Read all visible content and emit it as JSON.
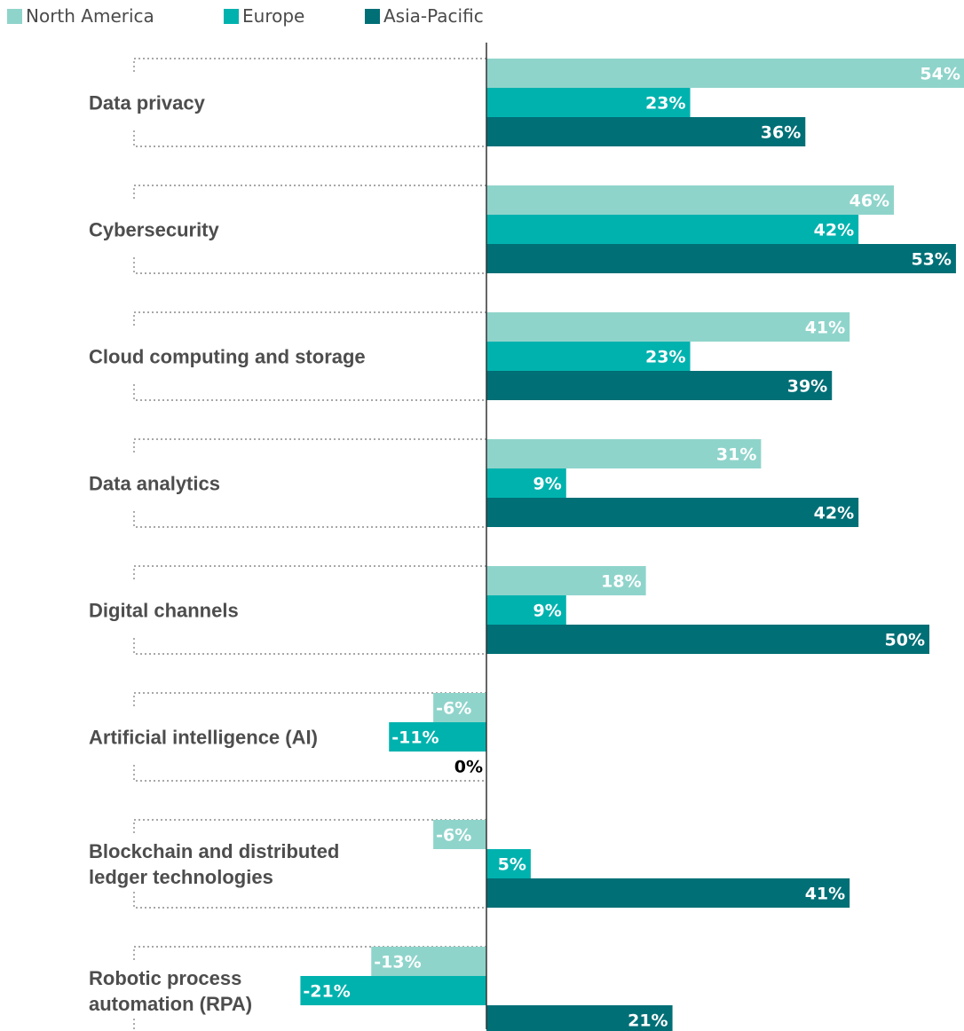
{
  "colors": {
    "north_america": "#8fd4cb",
    "europe": "#00b2ae",
    "asia_pacific": "#006f76",
    "axis": "#333333",
    "bracket": "#8a8a8a",
    "label_inside": "#ffffff",
    "label_zero": "#000000"
  },
  "chart_data": {
    "type": "bar",
    "orientation": "horizontal",
    "legend_position": "top-left",
    "grid": false,
    "xlim": [
      -38,
      54
    ],
    "categories": [
      "Data privacy",
      "Cybersecurity",
      "Cloud computing and storage",
      "Data analytics",
      "Digital channels",
      "Artificial intelligence (AI)",
      "Blockchain and distributed ledger technologies",
      "Robotic process automation (RPA)"
    ],
    "category_lines": [
      [
        "Data privacy"
      ],
      [
        "Cybersecurity"
      ],
      [
        "Cloud computing and storage"
      ],
      [
        "Data analytics"
      ],
      [
        "Digital channels"
      ],
      [
        "Artificial intelligence (AI)"
      ],
      [
        "Blockchain and distributed",
        "ledger technologies"
      ],
      [
        "Robotic process",
        "automation (RPA)"
      ]
    ],
    "series": [
      {
        "name": "North America",
        "values": [
          54,
          46,
          41,
          31,
          18,
          -6,
          -6,
          -13
        ],
        "labels": [
          "54%",
          "46%",
          "41%",
          "31%",
          "18%",
          "-6%",
          "-6%",
          "-13%"
        ]
      },
      {
        "name": "Europe",
        "values": [
          23,
          42,
          23,
          9,
          9,
          -11,
          5,
          -21
        ],
        "labels": [
          "23%",
          "42%",
          "23%",
          "9%",
          "9%",
          "-11%",
          "5%",
          "-21%"
        ]
      },
      {
        "name": "Asia-Pacific",
        "values": [
          36,
          53,
          39,
          42,
          50,
          0,
          41,
          21
        ],
        "labels": [
          "36%",
          "53%",
          "39%",
          "42%",
          "50%",
          "0%",
          "41%",
          "21%"
        ]
      }
    ]
  }
}
